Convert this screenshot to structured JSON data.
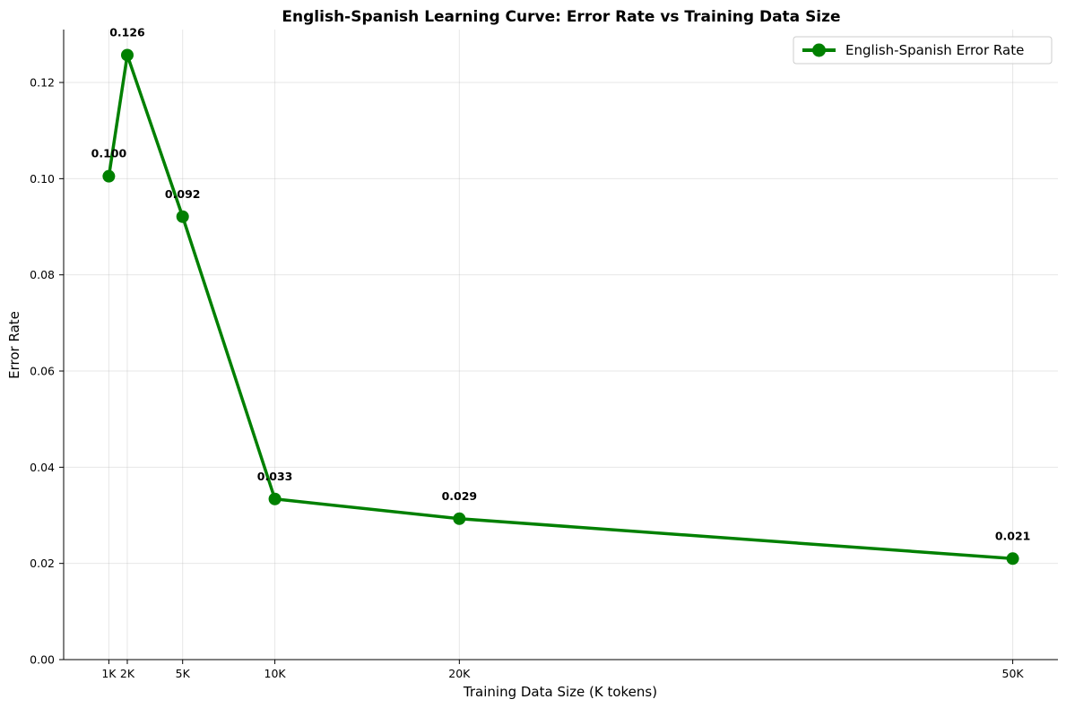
{
  "chart_data": {
    "type": "line",
    "title": "English-Spanish Learning Curve: Error Rate vs Training Data Size",
    "xlabel": "Training Data Size (K tokens)",
    "ylabel": "Error Rate",
    "x": [
      1,
      2,
      5,
      10,
      20,
      50
    ],
    "x_tick_labels": [
      "1K",
      "2K",
      "5K",
      "10K",
      "20K",
      "50K"
    ],
    "y_ticks": [
      0.0,
      0.02,
      0.04,
      0.06,
      0.08,
      0.1,
      0.12
    ],
    "y_tick_labels": [
      "0.00",
      "0.02",
      "0.04",
      "0.06",
      "0.08",
      "0.10",
      "0.12"
    ],
    "xlim": [
      -1.45,
      52.45
    ],
    "ylim": [
      0,
      0.131
    ],
    "grid": true,
    "legend_position": "top-right",
    "series": [
      {
        "name": "English-Spanish Error Rate",
        "color": "#008000",
        "marker": "circle",
        "values": [
          0.1005,
          0.1257,
          0.0921,
          0.0334,
          0.0293,
          0.021
        ],
        "data_labels": [
          "0.100",
          "0.126",
          "0.092",
          "0.033",
          "0.029",
          "0.021"
        ]
      }
    ]
  }
}
